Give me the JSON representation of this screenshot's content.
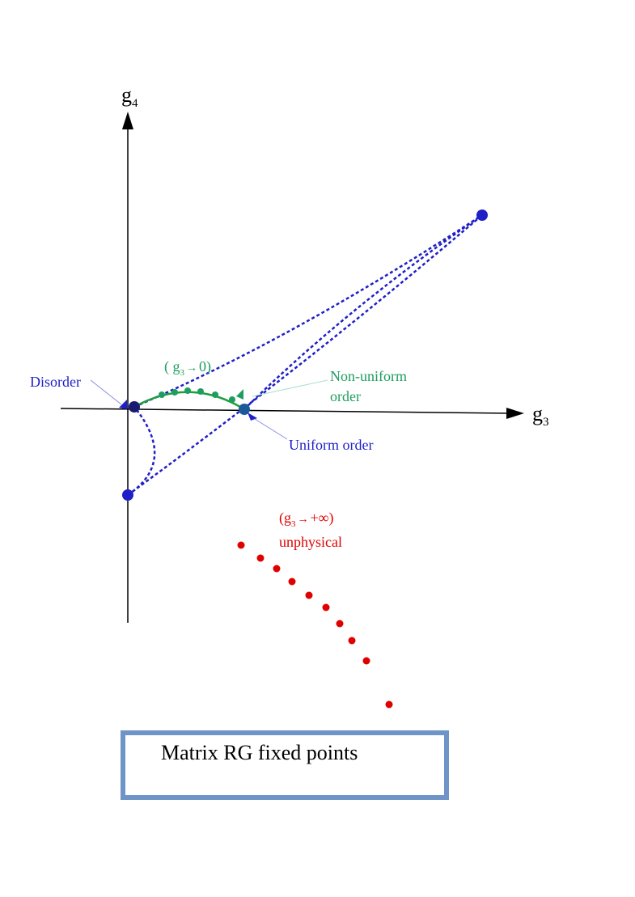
{
  "axes": {
    "vertical": {
      "base": "g",
      "sub": "4"
    },
    "horizontal": {
      "base": "g",
      "sub": "3"
    }
  },
  "labels": {
    "disorder": "Disorder",
    "non_uniform": [
      "Non-uniform",
      "order"
    ],
    "uniform": "Uniform order",
    "green_limit": {
      "open": "( g",
      "sub": "3",
      "arrow": "→",
      "close": "0)"
    },
    "red_limit": {
      "open": "(g",
      "sub": "3",
      "arrow": "→",
      "close": "+∞)",
      "note": "unphysical"
    }
  },
  "caption": "Matrix RG fixed points"
}
